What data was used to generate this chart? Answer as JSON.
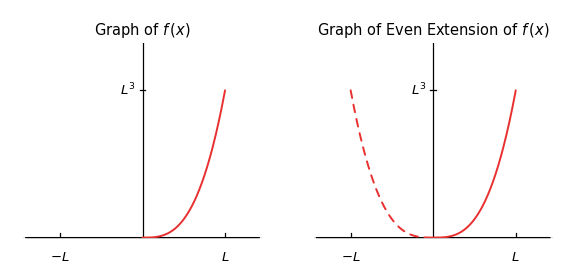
{
  "title_left": "Graph of $\\mathit{f}\\,(x)$",
  "title_right": "Graph of Even Extension of $\\mathit{f}\\,(x)$",
  "curve_color": "#e83030",
  "line_color": "#000000",
  "bg_color": "#ffffff",
  "xlabel_neg": "$-L$",
  "xlabel_pos": "$L$",
  "ylabel_label": "$L^3$",
  "title_fontsize": 10.5,
  "label_fontsize": 9.5,
  "curve_linewidth": 1.4,
  "xlim": [
    -1.45,
    1.45
  ],
  "ylim": [
    0.0,
    1.32
  ],
  "L": 1.0
}
